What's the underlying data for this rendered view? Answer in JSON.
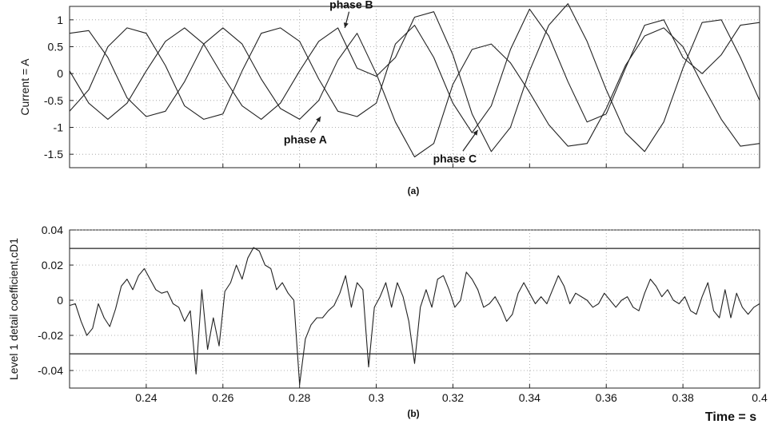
{
  "chart_data": [
    {
      "type": "line",
      "caption": "(a)",
      "ylabel": "Current = A",
      "xlim": [
        0.22,
        0.4
      ],
      "ylim": [
        -1.75,
        1.25
      ],
      "yticks": [
        1,
        0.5,
        0,
        -0.5,
        -1,
        -1.5
      ],
      "ytick_labels": [
        "1",
        "0.5",
        "0",
        "-0.5",
        "-1",
        "-1.5"
      ],
      "xticks": [
        0.24,
        0.26,
        0.28,
        0.3,
        0.32,
        0.34,
        0.36,
        0.38,
        0.4
      ],
      "show_xtick_labels": false,
      "grid": true,
      "annotations": [
        {
          "text": "phase B",
          "x": 0.2935,
          "y": 1.21,
          "arrow_to": [
            0.2918,
            0.85
          ]
        },
        {
          "text": "phase A",
          "x": 0.2815,
          "y": -1.3,
          "arrow_to": [
            0.2855,
            -0.8
          ]
        },
        {
          "text": "phase C",
          "x": 0.3205,
          "y": -1.65,
          "arrow_to": [
            0.3265,
            -1.05
          ]
        }
      ],
      "series": [
        {
          "label": "phase A",
          "x": [
            0.22,
            0.225,
            0.23,
            0.235,
            0.24,
            0.245,
            0.25,
            0.255,
            0.26,
            0.265,
            0.27,
            0.275,
            0.28,
            0.285,
            0.29,
            0.295,
            0.3,
            0.305,
            0.31,
            0.315,
            0.32,
            0.325,
            0.33,
            0.335,
            0.34,
            0.345,
            0.35,
            0.355,
            0.36,
            0.365,
            0.37,
            0.375,
            0.38,
            0.385,
            0.39,
            0.395,
            0.4
          ],
          "y": [
            0.05,
            -0.55,
            -0.85,
            -0.55,
            0.05,
            0.6,
            0.85,
            0.55,
            -0.05,
            -0.6,
            -0.85,
            -0.55,
            0.05,
            0.6,
            0.85,
            0.1,
            -0.05,
            0.3,
            1.05,
            1.15,
            0.35,
            -0.75,
            -1.45,
            -1.0,
            0.05,
            0.9,
            1.3,
            0.6,
            -0.3,
            -1.1,
            -1.45,
            -0.9,
            0.1,
            0.95,
            1.0,
            0.3,
            -0.5
          ]
        },
        {
          "label": "phase B",
          "x": [
            0.22,
            0.225,
            0.23,
            0.235,
            0.24,
            0.245,
            0.25,
            0.255,
            0.26,
            0.265,
            0.27,
            0.275,
            0.28,
            0.285,
            0.29,
            0.295,
            0.3,
            0.305,
            0.31,
            0.315,
            0.32,
            0.325,
            0.33,
            0.335,
            0.34,
            0.345,
            0.35,
            0.355,
            0.36,
            0.365,
            0.37,
            0.375,
            0.38,
            0.385,
            0.39,
            0.395,
            0.4
          ],
          "y": [
            0.75,
            0.8,
            0.3,
            -0.45,
            -0.8,
            -0.7,
            -0.15,
            0.55,
            0.85,
            0.55,
            -0.1,
            -0.65,
            -0.85,
            -0.5,
            0.25,
            0.75,
            0.0,
            -0.9,
            -1.55,
            -1.3,
            -0.2,
            0.45,
            0.55,
            0.2,
            -0.35,
            -0.95,
            -1.35,
            -1.3,
            -0.65,
            0.15,
            0.7,
            0.85,
            0.5,
            -0.2,
            -0.85,
            -1.35,
            -1.3
          ]
        },
        {
          "label": "phase C",
          "x": [
            0.22,
            0.225,
            0.23,
            0.235,
            0.24,
            0.245,
            0.25,
            0.255,
            0.26,
            0.265,
            0.27,
            0.275,
            0.28,
            0.285,
            0.29,
            0.295,
            0.3,
            0.305,
            0.31,
            0.315,
            0.32,
            0.325,
            0.33,
            0.335,
            0.34,
            0.345,
            0.35,
            0.355,
            0.36,
            0.365,
            0.37,
            0.375,
            0.38,
            0.385,
            0.39,
            0.395,
            0.4
          ],
          "y": [
            -0.7,
            -0.3,
            0.5,
            0.85,
            0.75,
            0.15,
            -0.6,
            -0.85,
            -0.75,
            0.05,
            0.75,
            0.85,
            0.6,
            -0.1,
            -0.7,
            -0.8,
            -0.55,
            0.55,
            0.9,
            0.3,
            -0.55,
            -1.1,
            -0.6,
            0.45,
            1.2,
            0.7,
            -0.15,
            -0.9,
            -0.75,
            0.1,
            0.9,
            1.0,
            0.3,
            0.0,
            0.35,
            0.9,
            0.95
          ]
        }
      ]
    },
    {
      "type": "line",
      "caption": "(b)",
      "ylabel": "Level 1 detail coefficient,cD1",
      "xlabel": "Time = s",
      "xlim": [
        0.22,
        0.4
      ],
      "ylim": [
        -0.05,
        0.04
      ],
      "yticks": [
        0.04,
        0.02,
        0,
        -0.02,
        -0.04
      ],
      "ytick_labels": [
        "0.04",
        "0.02",
        "0",
        "-0.02",
        "-0.04"
      ],
      "xticks": [
        0.24,
        0.26,
        0.28,
        0.3,
        0.32,
        0.34,
        0.36,
        0.38,
        0.4
      ],
      "xtick_labels": [
        "0.24",
        "0.26",
        "0.28",
        "0.3",
        "0.32",
        "0.34",
        "0.36",
        "0.38",
        "0.4"
      ],
      "grid": true,
      "thresholds": [
        0.0295,
        -0.0305
      ],
      "series": [
        {
          "label": "cD1",
          "x": [
            0.22,
            0.2215,
            0.223,
            0.2245,
            0.226,
            0.2275,
            0.229,
            0.2305,
            0.232,
            0.2335,
            0.235,
            0.2365,
            0.238,
            0.2395,
            0.241,
            0.2425,
            0.244,
            0.2455,
            0.247,
            0.2485,
            0.25,
            0.2515,
            0.253,
            0.2545,
            0.256,
            0.2575,
            0.259,
            0.2605,
            0.262,
            0.2635,
            0.265,
            0.2665,
            0.268,
            0.2695,
            0.271,
            0.2725,
            0.274,
            0.2755,
            0.277,
            0.2785,
            0.28,
            0.2815,
            0.283,
            0.2845,
            0.286,
            0.2875,
            0.289,
            0.2905,
            0.292,
            0.2935,
            0.295,
            0.2965,
            0.298,
            0.2995,
            0.301,
            0.3025,
            0.304,
            0.3055,
            0.307,
            0.3085,
            0.31,
            0.3115,
            0.313,
            0.3145,
            0.316,
            0.3175,
            0.319,
            0.3205,
            0.322,
            0.3235,
            0.325,
            0.3265,
            0.328,
            0.3295,
            0.331,
            0.3325,
            0.334,
            0.3355,
            0.337,
            0.3385,
            0.34,
            0.3415,
            0.343,
            0.3445,
            0.346,
            0.3475,
            0.349,
            0.3505,
            0.352,
            0.3535,
            0.355,
            0.3565,
            0.358,
            0.3595,
            0.361,
            0.3625,
            0.364,
            0.3655,
            0.367,
            0.3685,
            0.37,
            0.3715,
            0.373,
            0.3745,
            0.376,
            0.3775,
            0.379,
            0.3805,
            0.382,
            0.3835,
            0.385,
            0.3865,
            0.388,
            0.3895,
            0.391,
            0.3925,
            0.394,
            0.3955,
            0.397,
            0.3985,
            0.4
          ],
          "y": [
            -0.003,
            -0.002,
            -0.012,
            -0.02,
            -0.016,
            -0.002,
            -0.01,
            -0.015,
            -0.005,
            0.008,
            0.012,
            0.006,
            0.014,
            0.018,
            0.012,
            0.006,
            0.004,
            0.005,
            -0.002,
            -0.004,
            -0.012,
            -0.006,
            -0.042,
            0.006,
            -0.028,
            -0.01,
            -0.026,
            0.005,
            0.01,
            0.02,
            0.012,
            0.024,
            0.03,
            0.028,
            0.02,
            0.018,
            0.006,
            0.01,
            0.004,
            0.0,
            -0.048,
            -0.022,
            -0.014,
            -0.01,
            -0.01,
            -0.006,
            -0.003,
            0.004,
            0.014,
            -0.004,
            0.01,
            0.006,
            -0.038,
            -0.004,
            0.002,
            0.01,
            -0.004,
            0.01,
            0.002,
            -0.012,
            -0.036,
            -0.004,
            0.006,
            -0.004,
            0.012,
            0.014,
            0.006,
            -0.004,
            0.0,
            0.016,
            0.012,
            0.006,
            -0.004,
            -0.002,
            0.002,
            -0.004,
            -0.012,
            -0.008,
            0.004,
            0.01,
            0.004,
            -0.002,
            0.002,
            -0.002,
            0.006,
            0.014,
            0.008,
            -0.002,
            0.004,
            0.002,
            0.0,
            -0.004,
            -0.002,
            0.004,
            0.0,
            -0.004,
            0.0,
            0.002,
            -0.004,
            -0.006,
            0.004,
            0.012,
            0.008,
            0.002,
            0.006,
            0.0,
            -0.002,
            0.002,
            -0.006,
            -0.008,
            0.002,
            0.01,
            -0.006,
            -0.01,
            0.006,
            -0.01,
            0.004,
            -0.004,
            -0.008,
            -0.004,
            -0.002
          ]
        }
      ]
    }
  ]
}
